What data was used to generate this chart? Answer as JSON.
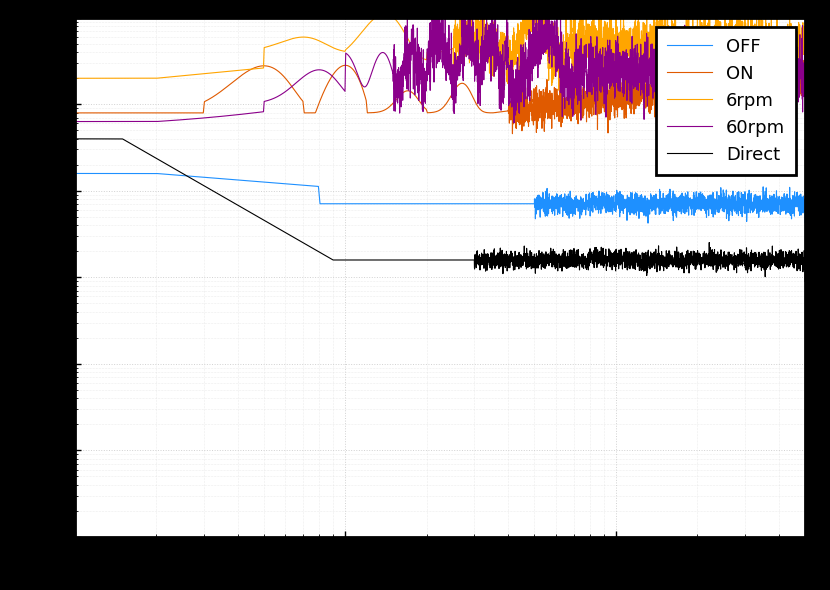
{
  "legend_labels": [
    "OFF",
    "ON",
    "6rpm",
    "60rpm",
    "Direct"
  ],
  "colors": [
    "#1e90ff",
    "#e05a00",
    "#ffa500",
    "#8b008b",
    "#000000"
  ],
  "linewidth": 0.8,
  "xmin": 1,
  "xmax": 500,
  "ymin": 1e-10,
  "ymax": 0.0001,
  "grid_color": "#cccccc",
  "plot_bg": "#ffffff",
  "fig_bg": "#000000",
  "legend_fontsize": 13,
  "legend_loc": "upper right",
  "seed": 1234
}
